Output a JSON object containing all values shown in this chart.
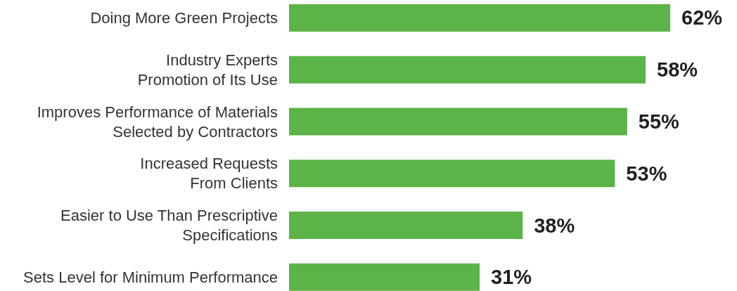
{
  "chart_data": {
    "type": "bar",
    "orientation": "horizontal",
    "categories": [
      "Doing More Green Projects",
      "Industry Experts\nPromotion of Its Use",
      "Improves Performance of Materials\nSelected by Contractors",
      "Increased Requests\nFrom Clients",
      "Easier to Use Than Prescriptive\nSpecifications",
      "Sets Level for Minimum Performance"
    ],
    "values": [
      62,
      58,
      55,
      53,
      38,
      31
    ],
    "color": "#5cb347",
    "value_labels": [
      "62%",
      "58%",
      "55%",
      "53%",
      "38%",
      "31%"
    ]
  }
}
